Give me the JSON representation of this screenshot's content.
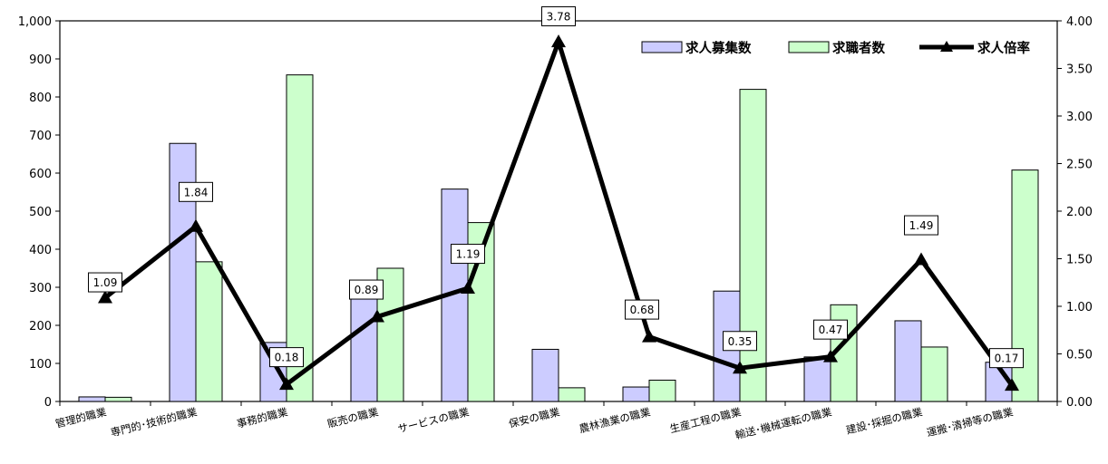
{
  "chart_data": {
    "type": "bar",
    "categories": [
      "管理的職業",
      "専門的･技術的職業",
      "事務的職業",
      "販売の職業",
      "サービスの職業",
      "保安の職業",
      "農林漁業の職業",
      "生産工程の職業",
      "輸送･機械運転の職業",
      "建設･採掘の職業",
      "運搬･清掃等の職業"
    ],
    "series": [
      {
        "name": "求人募集数",
        "type": "bar",
        "axis": "left",
        "color": "#ccccff",
        "values": [
          12,
          678,
          155,
          313,
          558,
          137,
          38,
          290,
          117,
          212,
          103
        ]
      },
      {
        "name": "求職者数",
        "type": "bar",
        "axis": "left",
        "color": "#ccffcc",
        "values": [
          11,
          367,
          858,
          350,
          470,
          36,
          56,
          820,
          254,
          143,
          608
        ]
      },
      {
        "name": "求人倍率",
        "type": "line",
        "axis": "right",
        "color": "#000000",
        "values": [
          1.09,
          1.84,
          0.18,
          0.89,
          1.19,
          3.78,
          0.68,
          0.35,
          0.47,
          1.49,
          0.17
        ],
        "labels": [
          "1.09",
          "1.84",
          "0.18",
          "0.89",
          "1.19",
          "3.78",
          "0.68",
          "0.35",
          "0.47",
          "1.49",
          "0.17"
        ]
      }
    ],
    "y_left": {
      "min": 0,
      "max": 1000,
      "ticks": [
        "0",
        "100",
        "200",
        "300",
        "400",
        "500",
        "600",
        "700",
        "800",
        "900",
        "1,000"
      ]
    },
    "y_right": {
      "min": 0,
      "max": 4,
      "ticks": [
        "0.00",
        "0.50",
        "1.00",
        "1.50",
        "2.00",
        "2.50",
        "3.00",
        "3.50",
        "4.00"
      ]
    },
    "legend_position": "top-right",
    "grid": false
  }
}
